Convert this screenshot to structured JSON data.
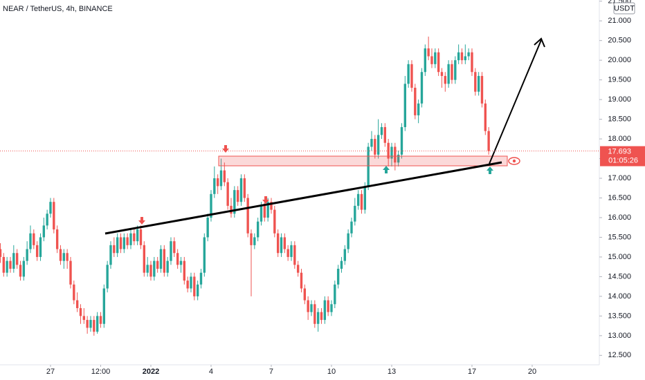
{
  "chart_data": {
    "type": "candlestick",
    "title": "NEAR / TetherUS, 4h, BINANCE",
    "currency": "USDT",
    "countdown": "01:05:26",
    "last_price": 17.693,
    "up_color": "#26a69a",
    "down_color": "#ef5350",
    "xlim": [
      -60.4,
      656.3
    ],
    "xticks": [
      {
        "value": 0,
        "label": "27"
      },
      {
        "value": 60,
        "label": "12:00"
      },
      {
        "value": 120,
        "label": "2022"
      },
      {
        "value": 192,
        "label": "4"
      },
      {
        "value": 264,
        "label": "7"
      },
      {
        "value": 336,
        "label": "10"
      },
      {
        "value": 408,
        "label": "13"
      },
      {
        "value": 504,
        "label": "17"
      },
      {
        "value": 576,
        "label": "20"
      }
    ],
    "ylim": [
      12.26,
      21.53
    ],
    "yticks": [
      {
        "value": 12.5,
        "label": "12.500"
      },
      {
        "value": 13,
        "label": "13.000"
      },
      {
        "value": 13.5,
        "label": "13.500"
      },
      {
        "value": 14,
        "label": "14.000"
      },
      {
        "value": 14.5,
        "label": "14.500"
      },
      {
        "value": 15,
        "label": "15.000"
      },
      {
        "value": 15.5,
        "label": "15.500"
      },
      {
        "value": 16,
        "label": "16.000"
      },
      {
        "value": 16.5,
        "label": "16.500"
      },
      {
        "value": 17,
        "label": "17.000"
      },
      {
        "value": 17.5,
        "label": "17.500"
      },
      {
        "value": 18,
        "label": "18.000"
      },
      {
        "value": 18.5,
        "label": "18.500"
      },
      {
        "value": 19,
        "label": "19.000"
      },
      {
        "value": 19.5,
        "label": "19.500"
      },
      {
        "value": 20,
        "label": "20.000"
      },
      {
        "value": 20.5,
        "label": "20.500"
      },
      {
        "value": 21,
        "label": "21.000"
      },
      {
        "value": 21.5,
        "label": "21.500"
      }
    ],
    "x": [
      -60,
      -56,
      -52,
      -48,
      -44,
      -40,
      -36,
      -32,
      -28,
      -24,
      -20,
      -16,
      -12,
      -8,
      -4,
      0,
      4,
      8,
      12,
      16,
      20,
      24,
      28,
      32,
      36,
      40,
      44,
      48,
      52,
      56,
      60,
      64,
      68,
      72,
      76,
      80,
      84,
      88,
      92,
      96,
      100,
      104,
      108,
      112,
      116,
      120,
      124,
      128,
      132,
      136,
      140,
      144,
      148,
      152,
      156,
      160,
      164,
      168,
      172,
      176,
      180,
      184,
      188,
      192,
      196,
      200,
      204,
      208,
      212,
      216,
      220,
      224,
      228,
      232,
      236,
      240,
      244,
      248,
      252,
      256,
      260,
      264,
      268,
      272,
      276,
      280,
      284,
      288,
      292,
      296,
      300,
      304,
      308,
      312,
      316,
      320,
      324,
      328,
      332,
      336,
      340,
      344,
      348,
      352,
      356,
      360,
      364,
      368,
      372,
      376,
      380,
      384,
      388,
      392,
      396,
      400,
      404,
      408,
      412,
      416,
      420,
      424,
      428,
      432,
      436,
      440,
      444,
      448,
      452,
      456,
      460,
      464,
      468,
      472,
      476,
      480,
      484,
      488,
      492,
      496,
      500,
      504,
      508,
      512,
      516,
      520,
      524
    ],
    "ohlc": [
      [
        15.2,
        15.35,
        14.85,
        15.0
      ],
      [
        15.0,
        15.1,
        14.5,
        14.6
      ],
      [
        14.6,
        15.0,
        14.5,
        14.9
      ],
      [
        14.9,
        15.0,
        14.6,
        14.7
      ],
      [
        14.7,
        15.3,
        14.6,
        15.1
      ],
      [
        15.1,
        15.2,
        14.7,
        14.8
      ],
      [
        14.8,
        14.9,
        14.4,
        14.5
      ],
      [
        14.5,
        15.0,
        14.4,
        14.9
      ],
      [
        14.9,
        15.4,
        14.8,
        15.2
      ],
      [
        15.2,
        15.8,
        15.1,
        15.6
      ],
      [
        15.6,
        15.7,
        15.2,
        15.3
      ],
      [
        15.3,
        15.4,
        14.9,
        15.0
      ],
      [
        15.0,
        15.6,
        14.9,
        15.5
      ],
      [
        15.5,
        16.0,
        15.4,
        15.8
      ],
      [
        15.8,
        16.2,
        15.7,
        16.1
      ],
      [
        16.1,
        16.5,
        16.0,
        16.4
      ],
      [
        16.4,
        16.5,
        15.6,
        15.7
      ],
      [
        15.7,
        15.8,
        15.1,
        15.2
      ],
      [
        15.2,
        15.3,
        14.8,
        14.9
      ],
      [
        14.9,
        15.2,
        14.7,
        15.1
      ],
      [
        15.1,
        15.2,
        14.7,
        14.9
      ],
      [
        14.9,
        15.0,
        14.2,
        14.3
      ],
      [
        14.3,
        14.4,
        13.8,
        13.9
      ],
      [
        13.9,
        14.1,
        13.6,
        13.7
      ],
      [
        13.7,
        13.8,
        13.3,
        13.5
      ],
      [
        13.5,
        13.7,
        13.3,
        13.4
      ],
      [
        13.4,
        13.5,
        13.05,
        13.2
      ],
      [
        13.2,
        13.5,
        13.1,
        13.4
      ],
      [
        13.4,
        13.5,
        13.0,
        13.1
      ],
      [
        13.1,
        13.6,
        13.05,
        13.5
      ],
      [
        13.5,
        13.6,
        13.2,
        13.3
      ],
      [
        13.3,
        14.3,
        13.2,
        14.2
      ],
      [
        14.2,
        14.9,
        14.1,
        14.8
      ],
      [
        14.8,
        15.4,
        14.7,
        15.3
      ],
      [
        15.3,
        15.5,
        15.0,
        15.1
      ],
      [
        15.1,
        15.6,
        15.0,
        15.5
      ],
      [
        15.5,
        15.6,
        15.1,
        15.2
      ],
      [
        15.2,
        15.6,
        15.1,
        15.5
      ],
      [
        15.5,
        15.6,
        15.2,
        15.3
      ],
      [
        15.3,
        15.7,
        15.2,
        15.6
      ],
      [
        15.6,
        15.75,
        15.3,
        15.4
      ],
      [
        15.4,
        15.8,
        15.3,
        15.7
      ],
      [
        15.7,
        15.8,
        15.2,
        15.3
      ],
      [
        15.3,
        15.4,
        14.5,
        14.6
      ],
      [
        14.6,
        15.0,
        14.5,
        14.8
      ],
      [
        14.8,
        14.9,
        14.4,
        14.5
      ],
      [
        14.5,
        15.0,
        14.4,
        14.9
      ],
      [
        14.9,
        15.0,
        14.6,
        14.7
      ],
      [
        14.7,
        15.3,
        14.6,
        15.2
      ],
      [
        15.2,
        15.3,
        14.5,
        14.6
      ],
      [
        14.6,
        15.0,
        14.5,
        14.9
      ],
      [
        14.9,
        15.5,
        14.8,
        15.4
      ],
      [
        15.4,
        15.5,
        15.0,
        15.1
      ],
      [
        15.1,
        15.2,
        14.7,
        14.8
      ],
      [
        14.8,
        15.0,
        14.6,
        14.9
      ],
      [
        14.9,
        15.0,
        14.3,
        14.4
      ],
      [
        14.4,
        14.5,
        14.1,
        14.2
      ],
      [
        14.2,
        14.6,
        14.1,
        14.5
      ],
      [
        14.5,
        14.6,
        13.9,
        14.0
      ],
      [
        14.0,
        14.4,
        13.9,
        14.3
      ],
      [
        14.3,
        14.7,
        14.2,
        14.6
      ],
      [
        14.6,
        15.6,
        14.5,
        15.5
      ],
      [
        15.5,
        16.1,
        15.4,
        16.0
      ],
      [
        16.0,
        16.7,
        15.9,
        16.6
      ],
      [
        16.6,
        17.3,
        16.5,
        17.0
      ],
      [
        17.0,
        17.1,
        16.6,
        16.8
      ],
      [
        16.8,
        17.5,
        16.7,
        17.2
      ],
      [
        17.2,
        17.4,
        16.8,
        16.9
      ],
      [
        16.9,
        17.0,
        16.2,
        16.3
      ],
      [
        16.3,
        16.5,
        16.0,
        16.1
      ],
      [
        16.1,
        16.8,
        16.0,
        16.7
      ],
      [
        16.7,
        16.8,
        16.3,
        16.4
      ],
      [
        16.4,
        17.1,
        16.3,
        17.0
      ],
      [
        17.0,
        17.1,
        16.4,
        16.5
      ],
      [
        16.5,
        16.6,
        15.5,
        15.6
      ],
      [
        15.6,
        15.7,
        14.0,
        15.3
      ],
      [
        15.3,
        15.6,
        15.2,
        15.5
      ],
      [
        15.5,
        16.0,
        15.4,
        15.9
      ],
      [
        15.9,
        16.4,
        15.8,
        16.3
      ],
      [
        16.3,
        16.4,
        15.9,
        16.0
      ],
      [
        16.0,
        16.5,
        15.9,
        16.4
      ],
      [
        16.4,
        16.5,
        16.1,
        16.2
      ],
      [
        16.2,
        16.3,
        15.5,
        15.6
      ],
      [
        15.6,
        15.7,
        15.0,
        15.1
      ],
      [
        15.1,
        15.6,
        15.0,
        15.5
      ],
      [
        15.5,
        15.6,
        15.1,
        15.2
      ],
      [
        15.2,
        15.3,
        14.9,
        15.0
      ],
      [
        15.0,
        15.4,
        14.9,
        15.3
      ],
      [
        15.3,
        15.4,
        14.7,
        14.8
      ],
      [
        14.8,
        14.9,
        14.5,
        14.6
      ],
      [
        14.6,
        14.7,
        14.1,
        14.2
      ],
      [
        14.2,
        14.3,
        13.8,
        13.9
      ],
      [
        13.9,
        14.0,
        13.4,
        13.6
      ],
      [
        13.6,
        13.9,
        13.5,
        13.8
      ],
      [
        13.8,
        13.9,
        13.2,
        13.3
      ],
      [
        13.3,
        13.7,
        13.1,
        13.6
      ],
      [
        13.6,
        13.7,
        13.3,
        13.4
      ],
      [
        13.4,
        14.0,
        13.3,
        13.9
      ],
      [
        13.9,
        14.0,
        13.5,
        13.6
      ],
      [
        13.6,
        13.9,
        13.5,
        13.8
      ],
      [
        13.8,
        14.4,
        13.7,
        14.3
      ],
      [
        14.3,
        14.8,
        14.2,
        14.7
      ],
      [
        14.7,
        15.0,
        14.6,
        14.9
      ],
      [
        14.9,
        15.3,
        14.8,
        15.2
      ],
      [
        15.2,
        15.7,
        15.1,
        15.6
      ],
      [
        15.6,
        16.0,
        15.5,
        15.9
      ],
      [
        15.9,
        16.5,
        15.8,
        16.3
      ],
      [
        16.3,
        16.7,
        16.2,
        16.6
      ],
      [
        16.6,
        16.7,
        16.1,
        16.2
      ],
      [
        16.2,
        16.9,
        16.1,
        16.8
      ],
      [
        16.8,
        17.9,
        16.7,
        17.8
      ],
      [
        17.8,
        18.2,
        17.7,
        18.0
      ],
      [
        18.0,
        18.1,
        17.5,
        17.6
      ],
      [
        17.6,
        18.5,
        17.5,
        18.1
      ],
      [
        18.1,
        18.4,
        18.0,
        18.3
      ],
      [
        18.3,
        18.4,
        17.8,
        17.9
      ],
      [
        17.9,
        18.0,
        17.3,
        17.5
      ],
      [
        17.5,
        17.9,
        17.3,
        17.8
      ],
      [
        17.8,
        17.9,
        17.2,
        17.4
      ],
      [
        17.4,
        17.7,
        17.3,
        17.6
      ],
      [
        17.6,
        18.4,
        17.5,
        18.3
      ],
      [
        18.3,
        19.6,
        18.2,
        19.4
      ],
      [
        19.4,
        20.0,
        19.3,
        19.9
      ],
      [
        19.9,
        20.0,
        19.2,
        19.3
      ],
      [
        19.3,
        19.4,
        18.5,
        18.6
      ],
      [
        18.6,
        19.0,
        18.4,
        18.9
      ],
      [
        18.9,
        19.8,
        18.8,
        19.7
      ],
      [
        19.7,
        20.4,
        19.6,
        20.3
      ],
      [
        20.3,
        20.6,
        20.0,
        20.1
      ],
      [
        20.1,
        20.3,
        19.8,
        19.9
      ],
      [
        19.9,
        20.3,
        19.8,
        20.2
      ],
      [
        20.2,
        20.3,
        19.6,
        19.7
      ],
      [
        19.7,
        19.8,
        19.3,
        19.6
      ],
      [
        19.6,
        19.7,
        19.2,
        19.4
      ],
      [
        19.4,
        20.0,
        19.3,
        19.9
      ],
      [
        19.9,
        20.0,
        19.4,
        19.5
      ],
      [
        19.5,
        20.1,
        19.4,
        20.0
      ],
      [
        20.0,
        20.4,
        19.9,
        20.2
      ],
      [
        20.2,
        20.3,
        19.9,
        20.0
      ],
      [
        20.0,
        20.4,
        19.9,
        20.1
      ],
      [
        20.1,
        20.3,
        20.0,
        20.2
      ],
      [
        20.2,
        20.3,
        19.6,
        19.7
      ],
      [
        19.7,
        19.8,
        19.1,
        19.2
      ],
      [
        19.2,
        19.7,
        19.1,
        19.6
      ],
      [
        19.6,
        19.7,
        18.8,
        18.9
      ],
      [
        18.9,
        19.0,
        18.1,
        18.2
      ],
      [
        18.2,
        18.3,
        17.6,
        17.693
      ]
    ]
  }
}
